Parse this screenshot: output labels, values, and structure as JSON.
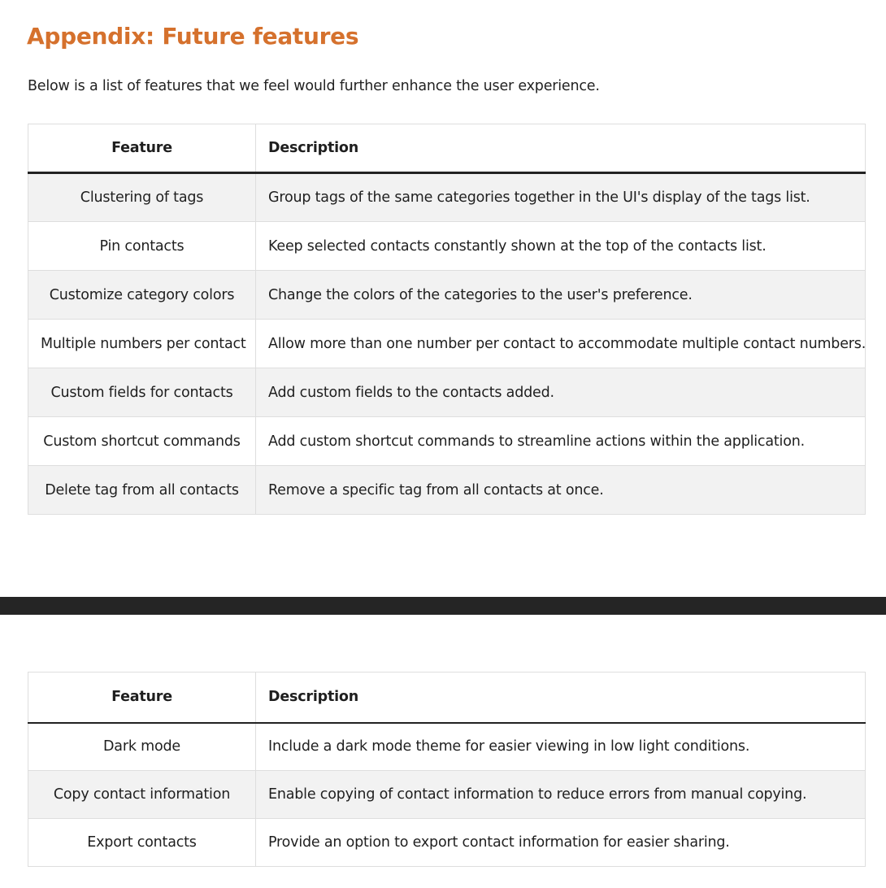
{
  "heading": "Appendix: Future features",
  "intro": "Below is a list of features that we feel would further enhance the user experience.",
  "table1": {
    "headers": {
      "feature": "Feature",
      "description": "Description"
    },
    "rows": [
      {
        "feature": "Clustering of tags",
        "description": "Group tags of the same categories together in the UI's display of the tags list."
      },
      {
        "feature": "Pin contacts",
        "description": "Keep selected contacts constantly shown at the top of the contacts list."
      },
      {
        "feature": "Customize category colors",
        "description": "Change the colors of the categories to the user's preference."
      },
      {
        "feature": "Multiple numbers per contact",
        "description": "Allow more than one number per contact to accommodate multiple contact numbers."
      },
      {
        "feature": "Custom fields for contacts",
        "description": "Add custom fields to the contacts added."
      },
      {
        "feature": "Custom shortcut commands",
        "description": "Add custom shortcut commands to streamline actions within the application."
      },
      {
        "feature": "Delete tag from all contacts",
        "description": "Remove a specific tag from all contacts at once."
      }
    ]
  },
  "table2": {
    "headers": {
      "feature": "Feature",
      "description": "Description"
    },
    "rows": [
      {
        "feature": "Dark mode",
        "description": "Include a dark mode theme for easier viewing in low light conditions."
      },
      {
        "feature": "Copy contact information",
        "description": "Enable copying of contact information to reduce errors from manual copying."
      },
      {
        "feature": "Export contacts",
        "description": "Provide an option to export contact information for easier sharing."
      }
    ]
  },
  "colors": {
    "heading": "#d5712d",
    "stripe": "#f2f2f2",
    "page_break": "#252525"
  }
}
